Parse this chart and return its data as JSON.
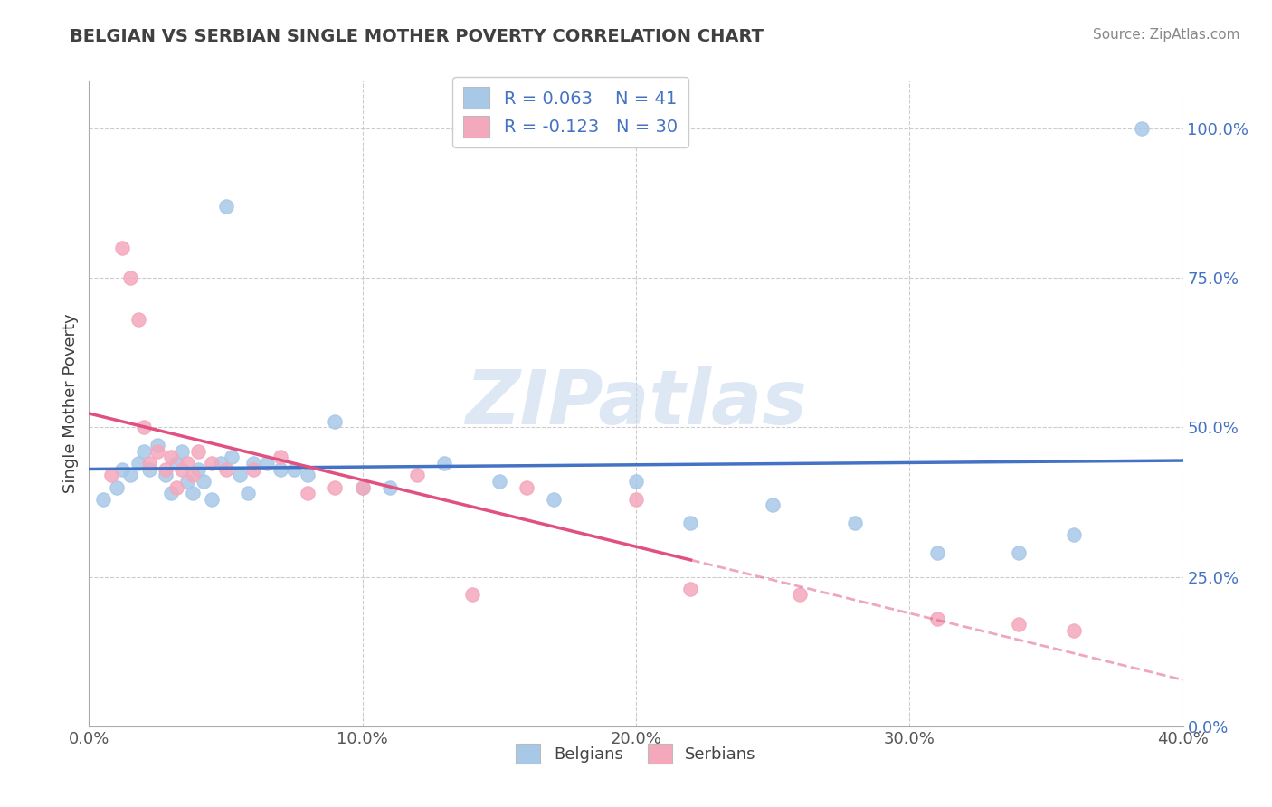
{
  "title": "BELGIAN VS SERBIAN SINGLE MOTHER POVERTY CORRELATION CHART",
  "source": "Source: ZipAtlas.com",
  "ylabel": "Single Mother Poverty",
  "xlim": [
    0.0,
    0.4
  ],
  "ylim": [
    0.0,
    1.08
  ],
  "xticks": [
    0.0,
    0.1,
    0.2,
    0.3,
    0.4
  ],
  "xtick_labels": [
    "0.0%",
    "10.0%",
    "20.0%",
    "30.0%",
    "40.0%"
  ],
  "yticks_right": [
    0.0,
    0.25,
    0.5,
    0.75,
    1.0
  ],
  "ytick_labels_right": [
    "0.0%",
    "25.0%",
    "50.0%",
    "75.0%",
    "100.0%"
  ],
  "belgian_R": 0.063,
  "belgian_N": 41,
  "serbian_R": -0.123,
  "serbian_N": 30,
  "belgian_color": "#A8C8E8",
  "serbian_color": "#F4A8BC",
  "belgian_line_color": "#4472C4",
  "serbian_line_color": "#E05080",
  "legend_R_color": "#4472C4",
  "title_color": "#404040",
  "source_color": "#888888",
  "background_color": "#FFFFFF",
  "grid_color": "#CCCCCC",
  "belgians_x": [
    0.005,
    0.01,
    0.012,
    0.015,
    0.018,
    0.02,
    0.022,
    0.025,
    0.028,
    0.03,
    0.032,
    0.034,
    0.036,
    0.038,
    0.04,
    0.042,
    0.045,
    0.048,
    0.05,
    0.052,
    0.055,
    0.058,
    0.06,
    0.065,
    0.07,
    0.075,
    0.08,
    0.09,
    0.1,
    0.11,
    0.13,
    0.15,
    0.17,
    0.2,
    0.22,
    0.25,
    0.28,
    0.31,
    0.34,
    0.36,
    0.385
  ],
  "belgians_y": [
    0.38,
    0.4,
    0.43,
    0.42,
    0.44,
    0.46,
    0.43,
    0.47,
    0.42,
    0.39,
    0.44,
    0.46,
    0.41,
    0.39,
    0.43,
    0.41,
    0.38,
    0.44,
    0.87,
    0.45,
    0.42,
    0.39,
    0.44,
    0.44,
    0.43,
    0.43,
    0.42,
    0.51,
    0.4,
    0.4,
    0.44,
    0.41,
    0.38,
    0.41,
    0.34,
    0.37,
    0.34,
    0.29,
    0.29,
    0.32,
    1.0
  ],
  "serbians_x": [
    0.008,
    0.012,
    0.015,
    0.018,
    0.02,
    0.022,
    0.025,
    0.028,
    0.03,
    0.032,
    0.034,
    0.036,
    0.038,
    0.04,
    0.045,
    0.05,
    0.06,
    0.07,
    0.08,
    0.09,
    0.1,
    0.12,
    0.14,
    0.16,
    0.2,
    0.22,
    0.26,
    0.31,
    0.34,
    0.36
  ],
  "serbians_y": [
    0.42,
    0.8,
    0.75,
    0.68,
    0.5,
    0.44,
    0.46,
    0.43,
    0.45,
    0.4,
    0.43,
    0.44,
    0.42,
    0.46,
    0.44,
    0.43,
    0.43,
    0.45,
    0.39,
    0.4,
    0.4,
    0.42,
    0.22,
    0.4,
    0.38,
    0.23,
    0.22,
    0.18,
    0.17,
    0.16
  ],
  "watermark_text": "ZIPatlas",
  "watermark_color": "#C8D8EE",
  "watermark_alpha": 0.6
}
